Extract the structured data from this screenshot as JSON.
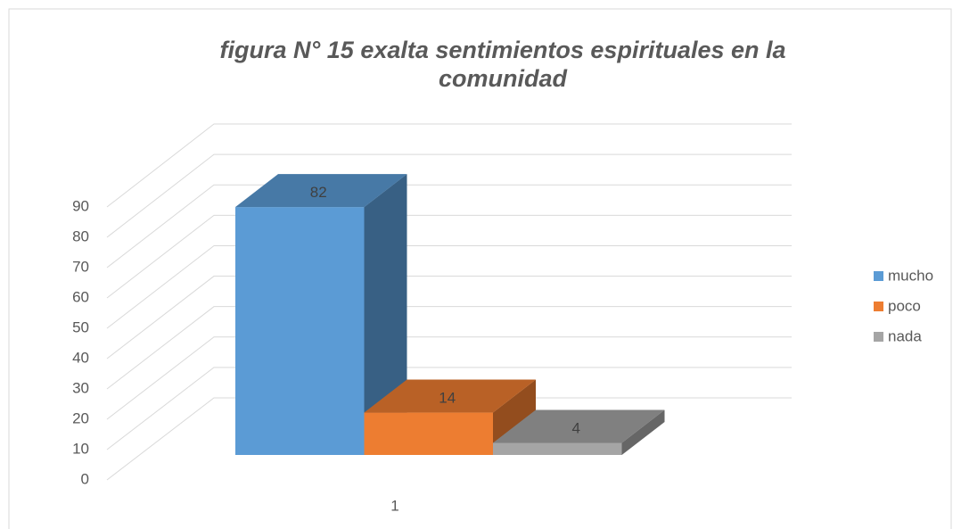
{
  "chart_data": {
    "type": "bar",
    "title": "figura N° 15 exalta sentimientos espirituales en la comunidad",
    "categories": [
      "1"
    ],
    "series": [
      {
        "name": "mucho",
        "color": "#5b9bd5",
        "values": [
          82
        ]
      },
      {
        "name": "poco",
        "color": "#ed7d31",
        "values": [
          14
        ]
      },
      {
        "name": "nada",
        "color": "#a5a5a5",
        "values": [
          4
        ]
      }
    ],
    "ylim": [
      0,
      90
    ],
    "yticks": [
      0,
      10,
      20,
      30,
      40,
      50,
      60,
      70,
      80,
      90
    ],
    "grid": true,
    "legend": "right"
  }
}
